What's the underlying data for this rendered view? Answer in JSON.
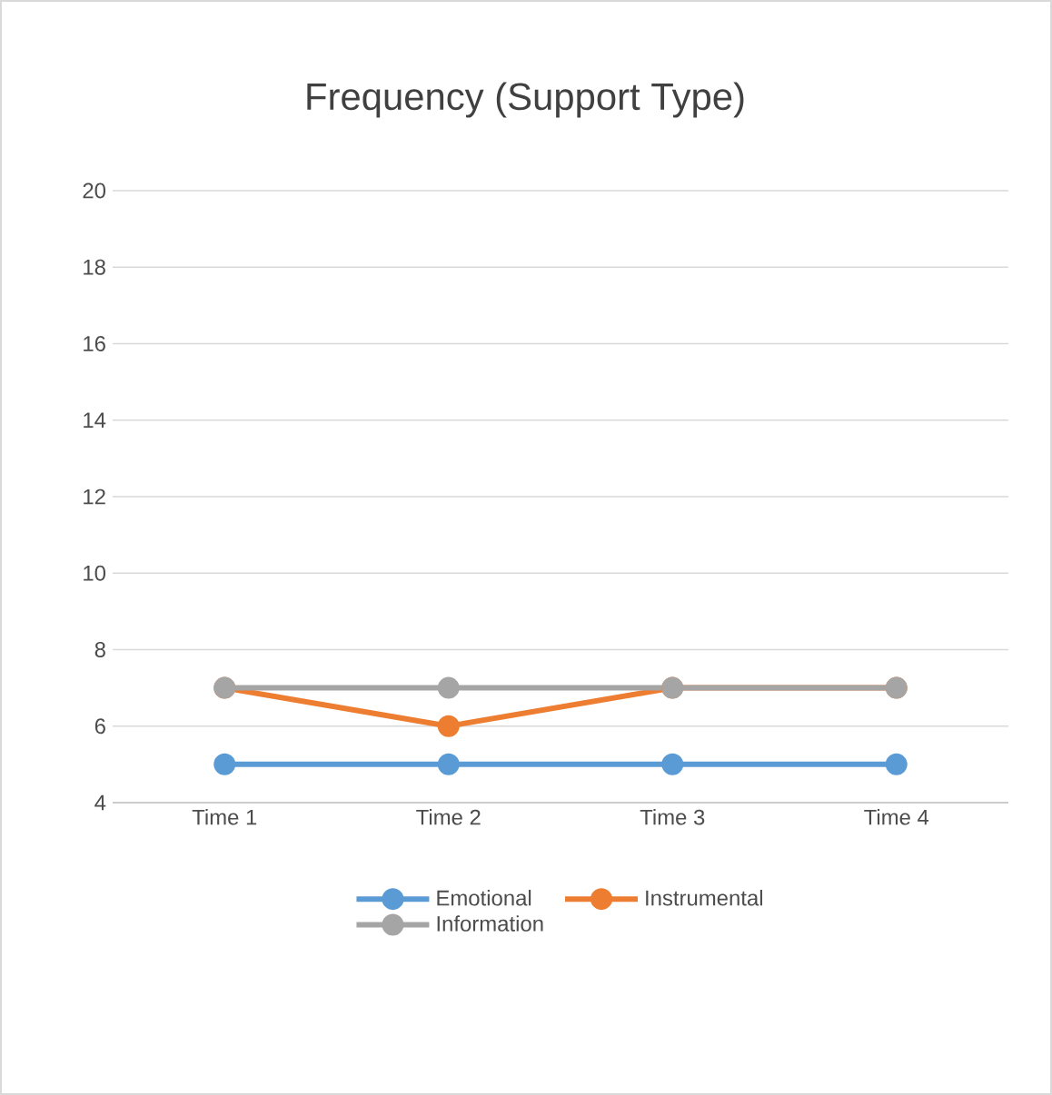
{
  "chart_data": {
    "type": "line",
    "title": "Frequency (Support Type)",
    "categories": [
      "Time 1",
      "Time 2",
      "Time 3",
      "Time 4"
    ],
    "series": [
      {
        "name": "Emotional",
        "color": "#5b9bd5",
        "values": [
          5,
          5,
          5,
          5
        ]
      },
      {
        "name": "Instrumental",
        "color": "#ed7d31",
        "values": [
          7,
          6,
          7,
          7
        ]
      },
      {
        "name": "Information",
        "color": "#a5a5a5",
        "values": [
          7,
          7,
          7,
          7
        ]
      }
    ],
    "ylim": [
      4,
      20
    ],
    "yticks": [
      4,
      6,
      8,
      10,
      12,
      14,
      16,
      18,
      20
    ],
    "grid": "y",
    "legend": "bottom",
    "marker": "circle",
    "line_style": "solid"
  }
}
